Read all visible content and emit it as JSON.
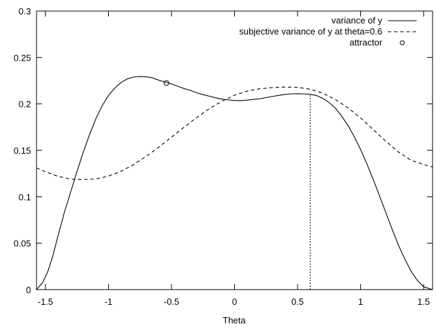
{
  "chart_data": {
    "type": "line",
    "title": "",
    "xlabel": "Theta",
    "ylabel": "",
    "xlim": [
      -1.5708,
      1.5708
    ],
    "ylim": [
      0,
      0.3
    ],
    "grid": false,
    "legend_position": "top-right",
    "x_ticks": [
      -1.5,
      -1,
      -0.5,
      0,
      0.5,
      1,
      1.5
    ],
    "x_tick_labels": [
      "-1.5",
      "-1",
      "-0.5",
      "0",
      "0.5",
      "1",
      "1.5"
    ],
    "y_ticks": [
      0,
      0.05,
      0.1,
      0.15,
      0.2,
      0.25,
      0.3
    ],
    "y_tick_labels": [
      "0",
      "0.05",
      "0.1",
      "0.15",
      "0.2",
      "0.25",
      "0.3"
    ],
    "series": [
      {
        "name": "variance of y",
        "style": "solid",
        "color": "#000000",
        "points": [
          [
            -1.5708,
            0.0
          ],
          [
            -1.52,
            0.008
          ],
          [
            -1.48,
            0.02
          ],
          [
            -1.44,
            0.037
          ],
          [
            -1.4,
            0.058
          ],
          [
            -1.35,
            0.083
          ],
          [
            -1.3,
            0.105
          ],
          [
            -1.25,
            0.127
          ],
          [
            -1.2,
            0.148
          ],
          [
            -1.15,
            0.167
          ],
          [
            -1.1,
            0.184
          ],
          [
            -1.05,
            0.198
          ],
          [
            -1.0,
            0.209
          ],
          [
            -0.95,
            0.217
          ],
          [
            -0.9,
            0.223
          ],
          [
            -0.85,
            0.227
          ],
          [
            -0.8,
            0.229
          ],
          [
            -0.75,
            0.2295
          ],
          [
            -0.7,
            0.2292
          ],
          [
            -0.65,
            0.228
          ],
          [
            -0.6,
            0.2255
          ],
          [
            -0.55,
            0.2235
          ],
          [
            -0.5,
            0.2215
          ],
          [
            -0.45,
            0.219
          ],
          [
            -0.4,
            0.2165
          ],
          [
            -0.35,
            0.2145
          ],
          [
            -0.3,
            0.212
          ],
          [
            -0.25,
            0.21
          ],
          [
            -0.2,
            0.2083
          ],
          [
            -0.15,
            0.2066
          ],
          [
            -0.1,
            0.2052
          ],
          [
            -0.05,
            0.2043
          ],
          [
            0.0,
            0.2037
          ],
          [
            0.05,
            0.2035
          ],
          [
            0.1,
            0.2041
          ],
          [
            0.15,
            0.2048
          ],
          [
            0.2,
            0.2055
          ],
          [
            0.25,
            0.2068
          ],
          [
            0.3,
            0.208
          ],
          [
            0.35,
            0.2092
          ],
          [
            0.4,
            0.2102
          ],
          [
            0.45,
            0.2108
          ],
          [
            0.5,
            0.211
          ],
          [
            0.55,
            0.2107
          ],
          [
            0.6,
            0.2105
          ],
          [
            0.65,
            0.209
          ],
          [
            0.7,
            0.206
          ],
          [
            0.75,
            0.2015
          ],
          [
            0.8,
            0.1955
          ],
          [
            0.85,
            0.1868
          ],
          [
            0.9,
            0.1768
          ],
          [
            0.95,
            0.1646
          ],
          [
            1.0,
            0.1508
          ],
          [
            1.05,
            0.1354
          ],
          [
            1.1,
            0.1187
          ],
          [
            1.15,
            0.101
          ],
          [
            1.2,
            0.083
          ],
          [
            1.25,
            0.065
          ],
          [
            1.3,
            0.048
          ],
          [
            1.35,
            0.033
          ],
          [
            1.4,
            0.02
          ],
          [
            1.45,
            0.01
          ],
          [
            1.5,
            0.003
          ],
          [
            1.5708,
            0.0
          ]
        ]
      },
      {
        "name": "subjective variance of y at theta=0.6",
        "style": "dashed",
        "color": "#000000",
        "points": [
          [
            -1.5708,
            0.131
          ],
          [
            -1.5,
            0.127
          ],
          [
            -1.4,
            0.122
          ],
          [
            -1.3,
            0.119
          ],
          [
            -1.2,
            0.1185
          ],
          [
            -1.1,
            0.1192
          ],
          [
            -1.0,
            0.1222
          ],
          [
            -0.9,
            0.1274
          ],
          [
            -0.8,
            0.1347
          ],
          [
            -0.7,
            0.1436
          ],
          [
            -0.6,
            0.1536
          ],
          [
            -0.5,
            0.1642
          ],
          [
            -0.4,
            0.175
          ],
          [
            -0.3,
            0.1853
          ],
          [
            -0.2,
            0.1948
          ],
          [
            -0.1,
            0.2029
          ],
          [
            0.0,
            0.2093
          ],
          [
            0.1,
            0.2138
          ],
          [
            0.2,
            0.2163
          ],
          [
            0.3,
            0.2175
          ],
          [
            0.4,
            0.2182
          ],
          [
            0.5,
            0.2178
          ],
          [
            0.6,
            0.2158
          ],
          [
            0.7,
            0.2115
          ],
          [
            0.8,
            0.2048
          ],
          [
            0.9,
            0.1958
          ],
          [
            1.0,
            0.1848
          ],
          [
            1.1,
            0.1724
          ],
          [
            1.2,
            0.1598
          ],
          [
            1.3,
            0.1482
          ],
          [
            1.4,
            0.1393
          ],
          [
            1.5,
            0.1348
          ],
          [
            1.5708,
            0.132
          ]
        ]
      },
      {
        "name": "attractor",
        "style": "marker-circle",
        "color": "#000000",
        "points": [
          [
            -0.54,
            0.2225
          ]
        ]
      }
    ],
    "vertical_reference_line": {
      "style": "dotted",
      "x": 0.6,
      "y_from": 0,
      "y_to": 0.2105
    }
  }
}
